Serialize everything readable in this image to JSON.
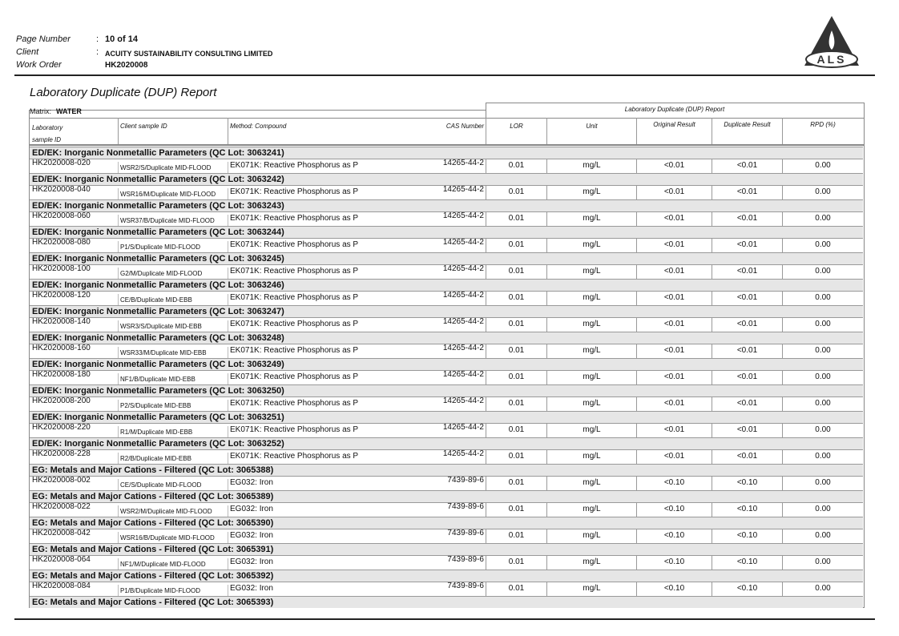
{
  "header": {
    "page_number_label": "Page Number",
    "separator": ":",
    "page_number": "10 of 14",
    "client_label": "Client",
    "client": "ACUITY SUSTAINABILITY CONSULTING LIMITED",
    "work_order_label": "Work Order",
    "work_order": "HK2020008",
    "logo": "ALS"
  },
  "report": {
    "title": "Laboratory Duplicate (DUP) Report",
    "matrix_label": "Matrix:",
    "matrix": "WATER",
    "group_header": "Laboratory Duplicate (DUP) Report",
    "columns": [
      "Laboratory sample ID",
      "Client sample ID",
      "Method: Compound",
      "CAS Number",
      "LOR",
      "Unit",
      "Original Result",
      "Duplicate Result",
      "RPD (%)"
    ],
    "groups": [
      {
        "title": "ED/EK: Inorganic Nonmetallic Parameters  (QC Lot: 3063241)",
        "rows": [
          [
            "HK2020008-020",
            "WSR2/S/Duplicate MID-FLOOD",
            "EK071K: Reactive Phosphorus as P",
            "14265-44-2",
            "0.01",
            "mg/L",
            "<0.01",
            "<0.01",
            "0.00"
          ]
        ]
      },
      {
        "title": "ED/EK: Inorganic Nonmetallic Parameters  (QC Lot: 3063242)",
        "rows": [
          [
            "HK2020008-040",
            "WSR16/M/Duplicate MID-FLOOD",
            "EK071K: Reactive Phosphorus as P",
            "14265-44-2",
            "0.01",
            "mg/L",
            "<0.01",
            "<0.01",
            "0.00"
          ]
        ]
      },
      {
        "title": "ED/EK: Inorganic Nonmetallic Parameters  (QC Lot: 3063243)",
        "rows": [
          [
            "HK2020008-060",
            "WSR37/B/Duplicate MID-FLOOD",
            "EK071K: Reactive Phosphorus as P",
            "14265-44-2",
            "0.01",
            "mg/L",
            "<0.01",
            "<0.01",
            "0.00"
          ]
        ]
      },
      {
        "title": "ED/EK: Inorganic Nonmetallic Parameters  (QC Lot: 3063244)",
        "rows": [
          [
            "HK2020008-080",
            "P1/S/Duplicate MID-FLOOD",
            "EK071K: Reactive Phosphorus as P",
            "14265-44-2",
            "0.01",
            "mg/L",
            "<0.01",
            "<0.01",
            "0.00"
          ]
        ]
      },
      {
        "title": "ED/EK: Inorganic Nonmetallic Parameters  (QC Lot: 3063245)",
        "rows": [
          [
            "HK2020008-100",
            "G2/M/Duplicate MID-FLOOD",
            "EK071K: Reactive Phosphorus as P",
            "14265-44-2",
            "0.01",
            "mg/L",
            "<0.01",
            "<0.01",
            "0.00"
          ]
        ]
      },
      {
        "title": "ED/EK: Inorganic Nonmetallic Parameters  (QC Lot: 3063246)",
        "rows": [
          [
            "HK2020008-120",
            "CE/B/Duplicate MID-EBB",
            "EK071K: Reactive Phosphorus as P",
            "14265-44-2",
            "0.01",
            "mg/L",
            "<0.01",
            "<0.01",
            "0.00"
          ]
        ]
      },
      {
        "title": "ED/EK: Inorganic Nonmetallic Parameters  (QC Lot: 3063247)",
        "rows": [
          [
            "HK2020008-140",
            "WSR3/S/Duplicate MID-EBB",
            "EK071K: Reactive Phosphorus as P",
            "14265-44-2",
            "0.01",
            "mg/L",
            "<0.01",
            "<0.01",
            "0.00"
          ]
        ]
      },
      {
        "title": "ED/EK: Inorganic Nonmetallic Parameters  (QC Lot: 3063248)",
        "rows": [
          [
            "HK2020008-160",
            "WSR33/M/Duplicate MID-EBB",
            "EK071K: Reactive Phosphorus as P",
            "14265-44-2",
            "0.01",
            "mg/L",
            "<0.01",
            "<0.01",
            "0.00"
          ]
        ]
      },
      {
        "title": "ED/EK: Inorganic Nonmetallic Parameters  (QC Lot: 3063249)",
        "rows": [
          [
            "HK2020008-180",
            "NF1/B/Duplicate MID-EBB",
            "EK071K: Reactive Phosphorus as P",
            "14265-44-2",
            "0.01",
            "mg/L",
            "<0.01",
            "<0.01",
            "0.00"
          ]
        ]
      },
      {
        "title": "ED/EK: Inorganic Nonmetallic Parameters  (QC Lot: 3063250)",
        "rows": [
          [
            "HK2020008-200",
            "P2/S/Duplicate MID-EBB",
            "EK071K: Reactive Phosphorus as P",
            "14265-44-2",
            "0.01",
            "mg/L",
            "<0.01",
            "<0.01",
            "0.00"
          ]
        ]
      },
      {
        "title": "ED/EK: Inorganic Nonmetallic Parameters  (QC Lot: 3063251)",
        "rows": [
          [
            "HK2020008-220",
            "R1/M/Duplicate MID-EBB",
            "EK071K: Reactive Phosphorus as P",
            "14265-44-2",
            "0.01",
            "mg/L",
            "<0.01",
            "<0.01",
            "0.00"
          ]
        ]
      },
      {
        "title": "ED/EK: Inorganic Nonmetallic Parameters  (QC Lot: 3063252)",
        "rows": [
          [
            "HK2020008-228",
            "R2/B/Duplicate MID-EBB",
            "EK071K: Reactive Phosphorus as P",
            "14265-44-2",
            "0.01",
            "mg/L",
            "<0.01",
            "<0.01",
            "0.00"
          ]
        ]
      },
      {
        "title": "EG: Metals and Major Cations - Filtered  (QC Lot: 3065388)",
        "rows": [
          [
            "HK2020008-002",
            "CE/S/Duplicate MID-FLOOD",
            "EG032: Iron",
            "7439-89-6",
            "0.01",
            "mg/L",
            "<0.10",
            "<0.10",
            "0.00"
          ]
        ]
      },
      {
        "title": "EG: Metals and Major Cations - Filtered  (QC Lot: 3065389)",
        "rows": [
          [
            "HK2020008-022",
            "WSR2/M/Duplicate MID-FLOOD",
            "EG032: Iron",
            "7439-89-6",
            "0.01",
            "mg/L",
            "<0.10",
            "<0.10",
            "0.00"
          ]
        ]
      },
      {
        "title": "EG: Metals and Major Cations - Filtered  (QC Lot: 3065390)",
        "rows": [
          [
            "HK2020008-042",
            "WSR16/B/Duplicate MID-FLOOD",
            "EG032: Iron",
            "7439-89-6",
            "0.01",
            "mg/L",
            "<0.10",
            "<0.10",
            "0.00"
          ]
        ]
      },
      {
        "title": "EG: Metals and Major Cations - Filtered  (QC Lot: 3065391)",
        "rows": [
          [
            "HK2020008-064",
            "NF1/M/Duplicate MID-FLOOD",
            "EG032: Iron",
            "7439-89-6",
            "0.01",
            "mg/L",
            "<0.10",
            "<0.10",
            "0.00"
          ]
        ]
      },
      {
        "title": "EG: Metals and Major Cations - Filtered  (QC Lot: 3065392)",
        "rows": [
          [
            "HK2020008-084",
            "P1/B/Duplicate MID-FLOOD",
            "EG032: Iron",
            "7439-89-6",
            "0.01",
            "mg/L",
            "<0.10",
            "<0.10",
            "0.00"
          ]
        ]
      },
      {
        "title": "EG: Metals and Major Cations - Filtered  (QC Lot: 3065393)",
        "rows": []
      }
    ]
  }
}
